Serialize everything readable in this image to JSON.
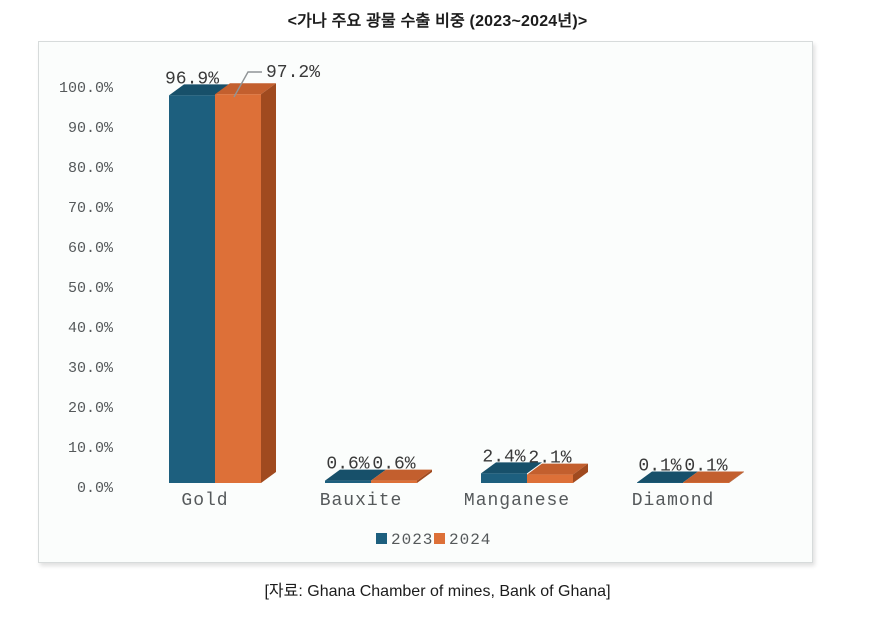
{
  "title": "<가나 주요 광물 수출 비중 (2023~2024년)>",
  "source": "[자료: Ghana Chamber of mines, Bank of Ghana]",
  "chart_data": {
    "type": "bar",
    "variant": "3d-clustered-column",
    "title": "<가나 주요 광물 수출 비중 (2023~2024년)>",
    "categories": [
      "Gold",
      "Bauxite",
      "Manganese",
      "Diamond"
    ],
    "series": [
      {
        "name": "2023",
        "values": [
          96.9,
          0.6,
          2.4,
          0.1
        ],
        "labels": [
          "96.9%",
          "0.6%",
          "2.4%",
          "0.1%"
        ],
        "color": "#1d5f7e",
        "top_color": "#17506a",
        "side_color": "#123c50"
      },
      {
        "name": "2024",
        "values": [
          97.2,
          0.6,
          2.1,
          0.1
        ],
        "labels": [
          "97.2%",
          "0.6%",
          "2.1%",
          "0.1%"
        ],
        "color": "#dd7038",
        "top_color": "#c35f2e",
        "side_color": "#a04a1f"
      }
    ],
    "y_ticks": [
      "0.0%",
      "10.0%",
      "20.0%",
      "30.0%",
      "40.0%",
      "50.0%",
      "60.0%",
      "70.0%",
      "80.0%",
      "90.0%",
      "100.0%"
    ],
    "ylim": [
      0,
      100
    ],
    "grid": false,
    "legend_position": "bottom",
    "callout": {
      "category": "Gold",
      "series": "2024"
    }
  },
  "legend": {
    "items": [
      {
        "label": "2023",
        "color": "#1d5f7e"
      },
      {
        "label": "2024",
        "color": "#dd7038"
      }
    ]
  },
  "text_colors": {
    "value_label": "#3a3a3a",
    "axis_label": "#55595b",
    "callout_line": "#8f9496"
  }
}
